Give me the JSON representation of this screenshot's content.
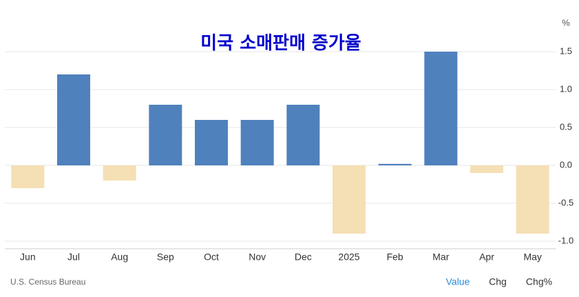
{
  "chart_data": {
    "type": "bar",
    "title": "미국 소매판매 증가율",
    "unit": "%",
    "categories": [
      "Jun",
      "Jul",
      "Aug",
      "Sep",
      "Oct",
      "Nov",
      "Dec",
      "2025",
      "Feb",
      "Mar",
      "Apr",
      "May"
    ],
    "values": [
      -0.3,
      1.2,
      -0.2,
      0.8,
      0.6,
      0.6,
      0.8,
      -0.9,
      0.02,
      1.5,
      -0.1,
      -0.9
    ],
    "colors": {
      "positive": "#4f81bd",
      "negative": "#f5dfb4"
    },
    "ylim": [
      -1.1,
      1.7
    ],
    "yticks": [
      1.5,
      {
        "value": 1,
        "label": "1.0"
      },
      0.5,
      {
        "value": 0,
        "label": "0.0"
      },
      -0.5,
      {
        "value": -1,
        "label": "-1.0"
      }
    ],
    "grid": true,
    "source": "U.S. Census Bureau",
    "buttons": [
      "Value",
      "Chg",
      "Chg%"
    ]
  }
}
